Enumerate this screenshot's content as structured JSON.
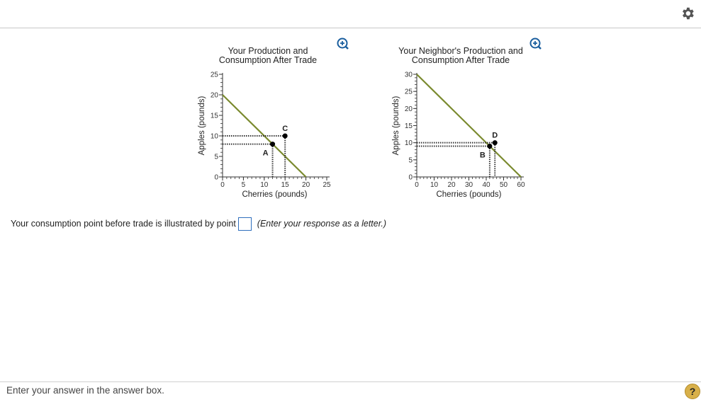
{
  "charts": [
    {
      "title_line1": "Your Production and",
      "title_line2": "Consumption After Trade",
      "xlabel": "Cherries (pounds)",
      "ylabel": "Apples (pounds)",
      "x_ticks": [
        0,
        5,
        10,
        15,
        20,
        25
      ],
      "y_ticks": [
        0,
        5,
        10,
        15,
        20,
        25
      ],
      "point_labels": {
        "production": "A",
        "consumption": "C"
      }
    },
    {
      "title_line1": "Your Neighbor's Production and",
      "title_line2": "Consumption After Trade",
      "xlabel": "Cherries (pounds)",
      "ylabel": "Apples (pounds)",
      "x_ticks": [
        0,
        10,
        20,
        30,
        40,
        50,
        60
      ],
      "y_ticks": [
        0,
        5,
        10,
        15,
        20,
        25,
        30
      ],
      "point_labels": {
        "production": "B",
        "consumption": "D"
      }
    }
  ],
  "chart_data": [
    {
      "type": "line",
      "title": "Your Production and Consumption After Trade",
      "xlabel": "Cherries (pounds)",
      "ylabel": "Apples (pounds)",
      "xlim": [
        0,
        25
      ],
      "ylim": [
        0,
        25
      ],
      "ppf": {
        "x": [
          0,
          20
        ],
        "y": [
          20,
          0
        ]
      },
      "points": [
        {
          "label": "A",
          "x": 12,
          "y": 8
        },
        {
          "label": "C",
          "x": 15,
          "y": 10
        }
      ],
      "line_color": "#7a8a2e"
    },
    {
      "type": "line",
      "title": "Your Neighbor's Production and Consumption After Trade",
      "xlabel": "Cherries (pounds)",
      "ylabel": "Apples (pounds)",
      "xlim": [
        0,
        60
      ],
      "ylim": [
        0,
        30
      ],
      "ppf": {
        "x": [
          0,
          60
        ],
        "y": [
          30,
          0
        ]
      },
      "points": [
        {
          "label": "B",
          "x": 42,
          "y": 9
        },
        {
          "label": "D",
          "x": 45,
          "y": 10
        }
      ],
      "line_color": "#7a8a2e"
    }
  ],
  "question": {
    "text": "Your consumption point before trade is illustrated by point",
    "answer": "",
    "hint": "(Enter your response as a letter.)"
  },
  "status": "Enter your answer in the answer box.",
  "help_label": "?",
  "icons": {
    "settings": "gear-icon",
    "zoom": "zoom-in-icon",
    "help": "help-icon"
  },
  "colors": {
    "ppf": "#7a8a2e",
    "accent": "#2f6fbd",
    "help": "#d8b04a"
  }
}
